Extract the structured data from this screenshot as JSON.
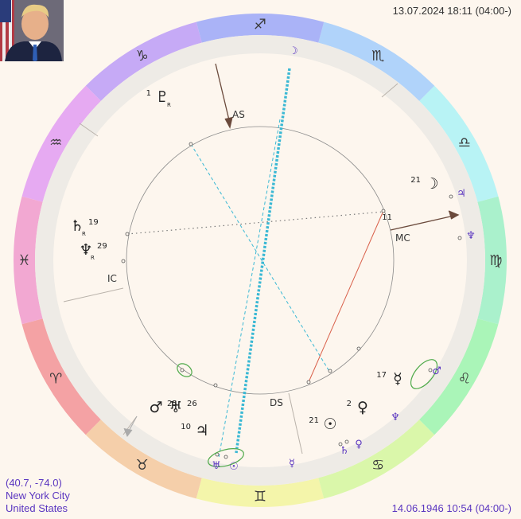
{
  "header": {
    "transit_datetime": "13.07.2024 18:11 (04:00-)"
  },
  "footer": {
    "coordinates": "(40.7, -74.0)",
    "city": "New York City",
    "country": "United States",
    "natal_datetime": "14.06.1946 10:54 (04:00-)"
  },
  "zodiac": [
    {
      "name": "aries",
      "glyph": "♈",
      "color": "#f4a2a4"
    },
    {
      "name": "taurus",
      "glyph": "♉",
      "color": "#f5cfaa"
    },
    {
      "name": "gemini",
      "glyph": "♊",
      "color": "#f4f5aa"
    },
    {
      "name": "cancer",
      "glyph": "♋",
      "color": "#daf7aa"
    },
    {
      "name": "leo",
      "glyph": "♌",
      "color": "#aaf5b8"
    },
    {
      "name": "virgo",
      "glyph": "♍",
      "color": "#aaf1cc"
    },
    {
      "name": "libra",
      "glyph": "♎",
      "color": "#b8f3f5"
    },
    {
      "name": "scorpio",
      "glyph": "♏",
      "color": "#b0d3fa"
    },
    {
      "name": "sagittarius",
      "glyph": "♐",
      "color": "#aab3f7"
    },
    {
      "name": "capricorn",
      "glyph": "♑",
      "color": "#c6aaf6"
    },
    {
      "name": "aquarius",
      "glyph": "♒",
      "color": "#e6aaf2"
    },
    {
      "name": "pisces",
      "glyph": "♓",
      "color": "#f2a8d2"
    }
  ],
  "angles": {
    "as": "AS",
    "mc": "MC",
    "ds": "DS",
    "ic": "IC"
  },
  "planets": [
    {
      "name": "moon-transit",
      "glyph": "☽",
      "color": "#5a35c0"
    },
    {
      "name": "moon-natal",
      "glyph": "☽",
      "degree": "21",
      "color": "#222222"
    },
    {
      "name": "jupiter-transit-libra",
      "glyph": "♃",
      "color": "#5a35c0"
    },
    {
      "name": "neptune-transit-libra",
      "glyph": "♆",
      "color": "#5a35c0"
    },
    {
      "name": "pluto-natal",
      "glyph": "♇",
      "degree": "1",
      "retro": "R",
      "color": "#222222"
    },
    {
      "name": "saturn-natal-pisces",
      "glyph": "♄",
      "degree": "19",
      "retro": "R",
      "color": "#222222"
    },
    {
      "name": "neptune-natal-pisces",
      "glyph": "♆",
      "degree": "29",
      "retro": "R",
      "color": "#222222"
    },
    {
      "name": "mars-natal",
      "glyph": "♂",
      "degree": "25",
      "color": "#222222"
    },
    {
      "name": "uranus-natal",
      "glyph": "♅",
      "degree": "26",
      "color": "#222222"
    },
    {
      "name": "jupiter-natal",
      "glyph": "♃",
      "degree": "10",
      "color": "#222222"
    },
    {
      "name": "uranus-transit",
      "glyph": "♅",
      "color": "#5a35c0"
    },
    {
      "name": "sun-transit",
      "glyph": "☉",
      "color": "#5a35c0"
    },
    {
      "name": "mercury-transit",
      "glyph": "☿",
      "color": "#5a35c0"
    },
    {
      "name": "sun-natal",
      "glyph": "☉",
      "degree": "21",
      "color": "#222222"
    },
    {
      "name": "saturn-transit",
      "glyph": "♄",
      "color": "#5a35c0"
    },
    {
      "name": "venus-transit",
      "glyph": "♀",
      "color": "#5a35c0"
    },
    {
      "name": "venus-natal",
      "glyph": "♀",
      "degree": "2",
      "color": "#222222"
    },
    {
      "name": "pluto-transit",
      "glyph": "♆",
      "color": "#5a35c0"
    },
    {
      "name": "mercury-natal",
      "glyph": "☿",
      "degree": "17",
      "color": "#222222"
    },
    {
      "name": "mars-transit",
      "glyph": "♂",
      "color": "#5a35c0"
    },
    {
      "name": "house-11",
      "glyph": "",
      "degree": "11",
      "color": "#222222"
    }
  ],
  "colors": {
    "house_ring": "#eeebe6",
    "inner_bg": "#fdf6ee",
    "axis_arrow": "#6b4a3c",
    "aspect_blue": "#3ab8d4",
    "aspect_red": "#d9604a",
    "cluster_green": "#4faa4a"
  }
}
